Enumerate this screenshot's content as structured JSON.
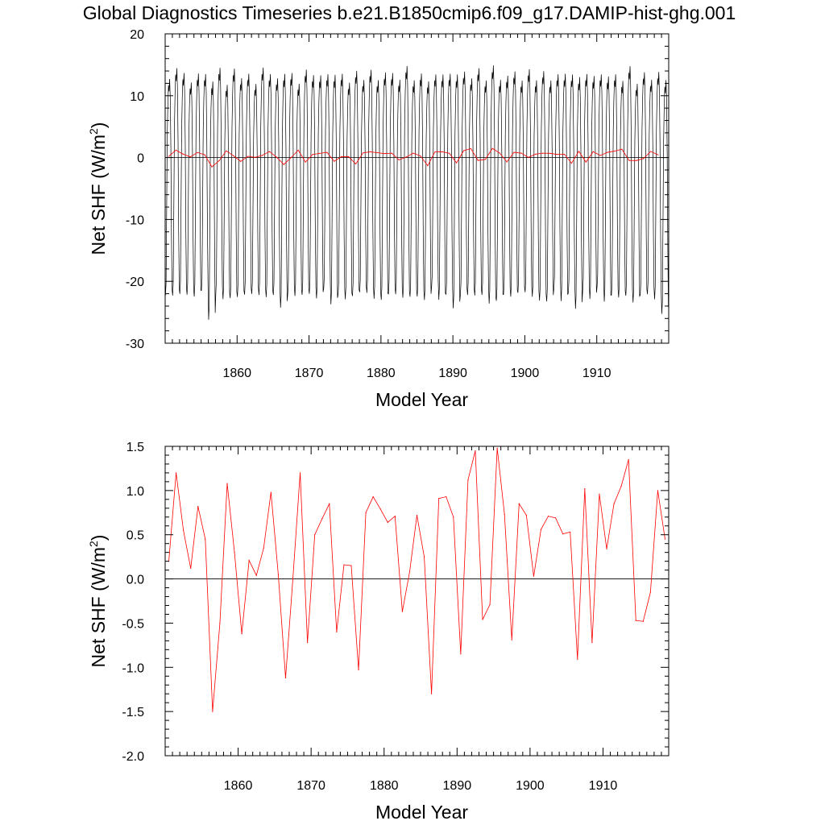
{
  "figure": {
    "title": "Global Diagnostics Timeseries b.e21.B1850cmip6.f09_g17.DAMIP-hist-ghg.001"
  },
  "colors": {
    "monthly_series": "#000000",
    "annual_series": "#ff0000",
    "background": "#ffffff"
  },
  "chart_data": [
    {
      "type": "line",
      "xlabel": "Model Year",
      "ylabel": "Net SHF (W/m",
      "ylabel_superscript": "2",
      "ylabel_suffix": ")",
      "xlim": [
        1850,
        1920
      ],
      "ylim": [
        -30,
        20
      ],
      "xticks": [
        1860,
        1870,
        1880,
        1890,
        1900,
        1910
      ],
      "xtick_labels": [
        "1860",
        "1870",
        "1880",
        "1890",
        "1900",
        "1910"
      ],
      "yticks": [
        -30,
        -20,
        -10,
        0,
        10,
        20
      ],
      "ytick_labels": [
        "-30",
        "-20",
        "-10",
        "0",
        "10",
        "20"
      ],
      "reference_line_y": 0,
      "monthly_climatology": [
        -22,
        -20,
        -8,
        4,
        9,
        12,
        11,
        13,
        10,
        2,
        -12,
        -21
      ],
      "monthly_year_offset": [
        -0.3,
        0.8,
        0.4,
        -0.6,
        0.2,
        0.5,
        -2.0,
        1.0,
        -1.1,
        0.6,
        -0.3,
        0.3,
        -0.7,
        0.9,
        0.1,
        -0.2,
        -0.5,
        0.4,
        -0.8,
        0.7,
        0.2,
        -0.1,
        0.6,
        -0.4,
        0.3,
        -0.9,
        0.5,
        -0.2,
        0.8,
        -0.6,
        0.1,
        0.4,
        -0.3,
        0.9,
        -0.5,
        0.2,
        -0.8,
        0.7,
        -0.1,
        0.3,
        -0.6,
        0.5,
        -0.2,
        0.8,
        -0.4,
        0.6,
        -0.7,
        0.1,
        0.4,
        -0.3,
        0.9,
        -0.5,
        0.2,
        -0.8,
        0.6,
        -0.1,
        0.3,
        -0.9,
        0.5,
        -0.2,
        0.7,
        -0.4,
        0.2,
        -0.6,
        1.0,
        -1.2,
        0.4,
        -0.3,
        0.2,
        -1.5
      ],
      "monthly_year_amplitude": [
        1.0,
        1.05,
        1.02,
        0.98,
        1.03,
        1.0,
        1.1,
        1.04,
        0.99,
        1.06,
        1.01,
        1.02,
        0.97,
        1.05,
        1.03,
        1.0,
        1.08,
        1.02,
        0.98,
        1.04,
        1.01,
        1.03,
        0.99,
        1.06,
        1.02,
        1.0,
        1.04,
        0.98,
        1.03,
        1.01,
        1.05,
        1.02,
        0.99,
        1.07,
        1.0,
        1.03,
        1.01,
        0.98,
        1.04,
        1.02,
        1.08,
        1.03,
        1.0,
        1.05,
        0.99,
        1.1,
        1.02,
        1.01,
        1.04,
        0.98,
        1.03,
        1.0,
        1.06,
        1.02,
        0.99,
        1.05,
        1.01,
        1.07,
        1.0,
        1.03,
        0.98,
        1.04,
        1.02,
        1.0,
        1.06,
        1.01,
        1.03,
        0.99,
        1.05,
        1.08
      ],
      "series": [
        {
          "color": "#ff0000",
          "x": [
            1850.5,
            1851.5,
            1852.5,
            1853.5,
            1854.5,
            1855.5,
            1856.5,
            1857.5,
            1858.5,
            1859.5,
            1860.5,
            1861.5,
            1862.5,
            1863.5,
            1864.5,
            1865.5,
            1866.5,
            1867.5,
            1868.5,
            1869.5,
            1870.5,
            1871.5,
            1872.5,
            1873.5,
            1874.5,
            1875.5,
            1876.5,
            1877.5,
            1878.5,
            1879.5,
            1880.5,
            1881.5,
            1882.5,
            1883.5,
            1884.5,
            1885.5,
            1886.5,
            1887.5,
            1888.5,
            1889.5,
            1890.5,
            1891.5,
            1892.5,
            1893.5,
            1894.5,
            1895.5,
            1896.5,
            1897.5,
            1898.5,
            1899.5,
            1900.5,
            1901.5,
            1902.5,
            1903.5,
            1904.5,
            1905.5,
            1906.5,
            1907.5,
            1908.5,
            1909.5,
            1910.5,
            1911.5,
            1912.5,
            1913.5,
            1914.5,
            1915.5,
            1916.5,
            1917.5,
            1918.5
          ],
          "values": [
            0.2,
            1.2,
            0.55,
            0.12,
            0.82,
            0.45,
            -1.5,
            -0.5,
            1.08,
            0.3,
            -0.62,
            0.21,
            0.04,
            0.35,
            0.98,
            0.05,
            -1.12,
            0.0,
            1.2,
            -0.72,
            0.5,
            0.68,
            0.85,
            -0.6,
            0.16,
            0.15,
            -1.03,
            0.75,
            0.93,
            0.79,
            0.64,
            0.71,
            -0.37,
            0.08,
            0.72,
            0.25,
            -1.3,
            0.91,
            0.93,
            0.7,
            -0.85,
            1.12,
            1.45,
            -0.46,
            -0.29,
            1.48,
            0.73,
            -0.69,
            0.85,
            0.72,
            0.03,
            0.56,
            0.71,
            0.69,
            0.51,
            0.53,
            -0.91,
            1.02,
            -0.72,
            0.96,
            0.34,
            0.85,
            1.05,
            1.35,
            -0.47,
            -0.48,
            -0.15,
            1.0,
            0.45
          ]
        }
      ]
    },
    {
      "type": "line",
      "xlabel": "Model Year",
      "ylabel": "Net SHF (W/m",
      "ylabel_superscript": "2",
      "ylabel_suffix": ")",
      "xlim": [
        1850,
        1919
      ],
      "ylim": [
        -2.0,
        1.5
      ],
      "xticks": [
        1860,
        1870,
        1880,
        1890,
        1900,
        1910
      ],
      "xtick_labels": [
        "1860",
        "1870",
        "1880",
        "1890",
        "1900",
        "1910"
      ],
      "yticks": [
        -2.0,
        -1.5,
        -1.0,
        -0.5,
        0.0,
        0.5,
        1.0,
        1.5
      ],
      "ytick_labels": [
        "-2.0",
        "-1.5",
        "-1.0",
        "-0.5",
        "0.0",
        "0.5",
        "1.0",
        "1.5"
      ],
      "reference_line_y": 0,
      "series": [
        {
          "color": "#ff0000",
          "x": [
            1850.5,
            1851.5,
            1852.5,
            1853.5,
            1854.5,
            1855.5,
            1856.5,
            1857.5,
            1858.5,
            1859.5,
            1860.5,
            1861.5,
            1862.5,
            1863.5,
            1864.5,
            1865.5,
            1866.5,
            1867.5,
            1868.5,
            1869.5,
            1870.5,
            1871.5,
            1872.5,
            1873.5,
            1874.5,
            1875.5,
            1876.5,
            1877.5,
            1878.5,
            1879.5,
            1880.5,
            1881.5,
            1882.5,
            1883.5,
            1884.5,
            1885.5,
            1886.5,
            1887.5,
            1888.5,
            1889.5,
            1890.5,
            1891.5,
            1892.5,
            1893.5,
            1894.5,
            1895.5,
            1896.5,
            1897.5,
            1898.5,
            1899.5,
            1900.5,
            1901.5,
            1902.5,
            1903.5,
            1904.5,
            1905.5,
            1906.5,
            1907.5,
            1908.5,
            1909.5,
            1910.5,
            1911.5,
            1912.5,
            1913.5,
            1914.5,
            1915.5,
            1916.5,
            1917.5,
            1918.5
          ],
          "values": [
            0.2,
            1.2,
            0.55,
            0.12,
            0.82,
            0.45,
            -1.5,
            -0.5,
            1.08,
            0.3,
            -0.62,
            0.21,
            0.04,
            0.35,
            0.98,
            0.05,
            -1.12,
            0.0,
            1.2,
            -0.72,
            0.5,
            0.68,
            0.85,
            -0.6,
            0.16,
            0.15,
            -1.03,
            0.75,
            0.93,
            0.79,
            0.64,
            0.71,
            -0.37,
            0.08,
            0.72,
            0.25,
            -1.3,
            0.91,
            0.93,
            0.7,
            -0.85,
            1.12,
            1.45,
            -0.46,
            -0.29,
            1.48,
            0.73,
            -0.69,
            0.85,
            0.72,
            0.03,
            0.56,
            0.71,
            0.69,
            0.51,
            0.53,
            -0.91,
            1.02,
            -0.72,
            0.96,
            0.34,
            0.85,
            1.05,
            1.35,
            -0.47,
            -0.48,
            -0.15,
            1.0,
            0.45
          ]
        }
      ]
    }
  ]
}
